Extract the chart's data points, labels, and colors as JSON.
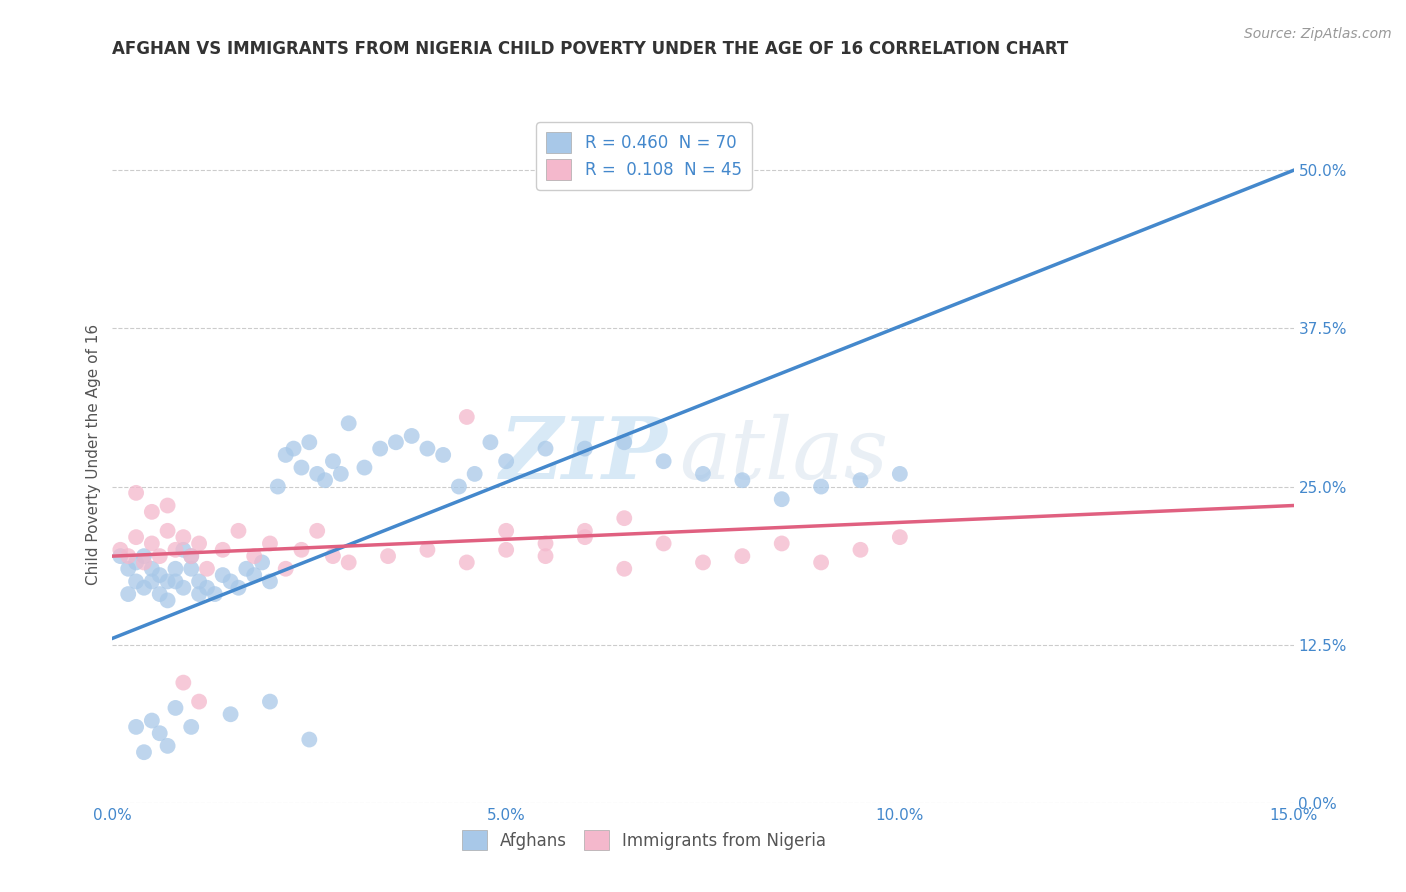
{
  "title": "AFGHAN VS IMMIGRANTS FROM NIGERIA CHILD POVERTY UNDER THE AGE OF 16 CORRELATION CHART",
  "source": "Source: ZipAtlas.com",
  "ylabel": "Child Poverty Under the Age of 16",
  "xlim": [
    0.0,
    0.15
  ],
  "ylim": [
    0.0,
    0.55
  ],
  "xticks": [
    0.0,
    0.05,
    0.1,
    0.15
  ],
  "xtick_labels": [
    "0.0%",
    "5.0%",
    "10.0%",
    "15.0%"
  ],
  "yticks": [
    0.0,
    0.125,
    0.25,
    0.375,
    0.5
  ],
  "ytick_labels": [
    "0.0%",
    "12.5%",
    "25.0%",
    "37.5%",
    "50.0%"
  ],
  "legend1_label": "R = 0.460  N = 70",
  "legend2_label": "R =  0.108  N = 45",
  "legend_bottom1": "Afghans",
  "legend_bottom2": "Immigrants from Nigeria",
  "blue_color": "#a8c8e8",
  "pink_color": "#f4b8cc",
  "blue_line_color": "#4488cc",
  "pink_line_color": "#e06080",
  "blue_line_x0": 0.0,
  "blue_line_y0": 0.13,
  "blue_line_x1": 0.15,
  "blue_line_y1": 0.5,
  "pink_line_x0": 0.0,
  "pink_line_y0": 0.195,
  "pink_line_x1": 0.15,
  "pink_line_y1": 0.235,
  "watermark_zip": "ZIP",
  "watermark_atlas": "atlas",
  "background_color": "#ffffff",
  "grid_color": "#cccccc",
  "title_color": "#333333",
  "axis_label_color": "#555555",
  "tick_color": "#4488cc",
  "blue_scatter_x": [
    0.001,
    0.002,
    0.002,
    0.003,
    0.003,
    0.004,
    0.004,
    0.005,
    0.005,
    0.006,
    0.006,
    0.007,
    0.007,
    0.008,
    0.008,
    0.009,
    0.009,
    0.01,
    0.01,
    0.011,
    0.011,
    0.012,
    0.013,
    0.014,
    0.015,
    0.016,
    0.017,
    0.018,
    0.019,
    0.02,
    0.021,
    0.022,
    0.023,
    0.024,
    0.025,
    0.026,
    0.027,
    0.028,
    0.029,
    0.03,
    0.032,
    0.034,
    0.036,
    0.038,
    0.04,
    0.042,
    0.044,
    0.046,
    0.048,
    0.05,
    0.055,
    0.06,
    0.065,
    0.07,
    0.075,
    0.08,
    0.085,
    0.09,
    0.095,
    0.1,
    0.01,
    0.015,
    0.02,
    0.025,
    0.003,
    0.004,
    0.005,
    0.006,
    0.007,
    0.008
  ],
  "blue_scatter_y": [
    0.195,
    0.185,
    0.165,
    0.175,
    0.19,
    0.17,
    0.195,
    0.185,
    0.175,
    0.18,
    0.165,
    0.175,
    0.16,
    0.185,
    0.175,
    0.17,
    0.2,
    0.195,
    0.185,
    0.175,
    0.165,
    0.17,
    0.165,
    0.18,
    0.175,
    0.17,
    0.185,
    0.18,
    0.19,
    0.175,
    0.25,
    0.275,
    0.28,
    0.265,
    0.285,
    0.26,
    0.255,
    0.27,
    0.26,
    0.3,
    0.265,
    0.28,
    0.285,
    0.29,
    0.28,
    0.275,
    0.25,
    0.26,
    0.285,
    0.27,
    0.28,
    0.28,
    0.285,
    0.27,
    0.26,
    0.255,
    0.24,
    0.25,
    0.255,
    0.26,
    0.06,
    0.07,
    0.08,
    0.05,
    0.06,
    0.04,
    0.065,
    0.055,
    0.045,
    0.075
  ],
  "pink_scatter_x": [
    0.001,
    0.002,
    0.003,
    0.004,
    0.005,
    0.006,
    0.007,
    0.008,
    0.009,
    0.01,
    0.011,
    0.012,
    0.014,
    0.016,
    0.018,
    0.02,
    0.022,
    0.024,
    0.026,
    0.028,
    0.03,
    0.035,
    0.04,
    0.045,
    0.05,
    0.055,
    0.06,
    0.065,
    0.07,
    0.075,
    0.08,
    0.085,
    0.09,
    0.095,
    0.1,
    0.045,
    0.05,
    0.055,
    0.06,
    0.065,
    0.003,
    0.005,
    0.007,
    0.009,
    0.011
  ],
  "pink_scatter_y": [
    0.2,
    0.195,
    0.21,
    0.19,
    0.205,
    0.195,
    0.215,
    0.2,
    0.21,
    0.195,
    0.205,
    0.185,
    0.2,
    0.215,
    0.195,
    0.205,
    0.185,
    0.2,
    0.215,
    0.195,
    0.19,
    0.195,
    0.2,
    0.19,
    0.2,
    0.195,
    0.215,
    0.185,
    0.205,
    0.19,
    0.195,
    0.205,
    0.19,
    0.2,
    0.21,
    0.305,
    0.215,
    0.205,
    0.21,
    0.225,
    0.245,
    0.23,
    0.235,
    0.095,
    0.08
  ]
}
